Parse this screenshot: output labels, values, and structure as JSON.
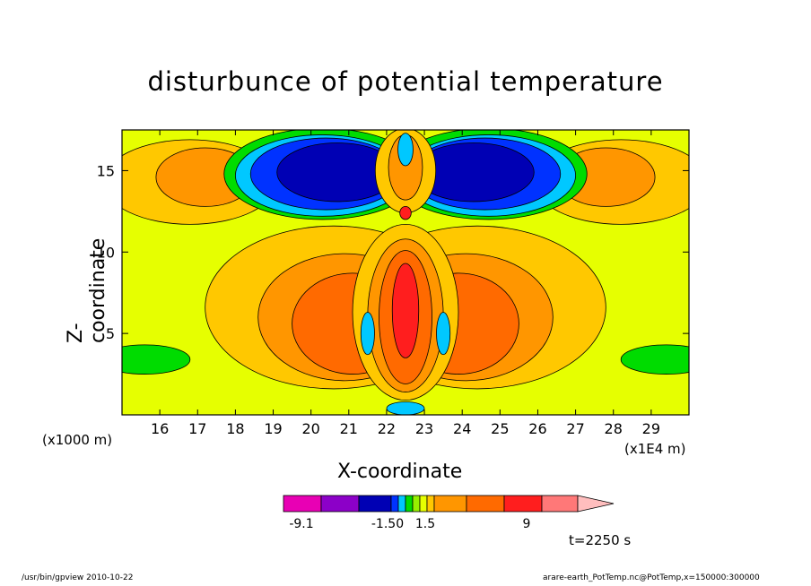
{
  "chart_data": {
    "type": "heatmap",
    "title": "disturbunce of potential temperature",
    "xlabel": "X-coordinate",
    "ylabel": "Z-coordinate",
    "x_unit_note": "(x1000 m)",
    "x_scale_note": "(x1E4 m)",
    "xlim": [
      15,
      30
    ],
    "ylim": [
      0,
      17.5
    ],
    "xticks": [
      16,
      17,
      18,
      19,
      20,
      21,
      22,
      23,
      24,
      25,
      26,
      27,
      28,
      29
    ],
    "yticks": [
      5,
      10,
      15
    ],
    "colorbar": {
      "tick_labels": [
        "-9.1",
        "-1.50",
        "1.5",
        "9"
      ],
      "colors": [
        "#e800b4",
        "#8c00c8",
        "#0000b4",
        "#0032ff",
        "#00c8ff",
        "#00dc00",
        "#96f000",
        "#e6ff00",
        "#ffc800",
        "#ff9600",
        "#ff6a00",
        "#ff1e1e",
        "#ff7878",
        "#ffbebe"
      ]
    },
    "field_note": "symmetric about x = 22.5; negative (blue) upper-center lobes, positive (red/orange) central column and side lobes",
    "time_label": "t=2250 s"
  },
  "footer": {
    "left": "/usr/bin/gpview   2010-10-22",
    "right": "arare-earth_PotTemp.nc@PotTemp,x=150000:300000"
  }
}
